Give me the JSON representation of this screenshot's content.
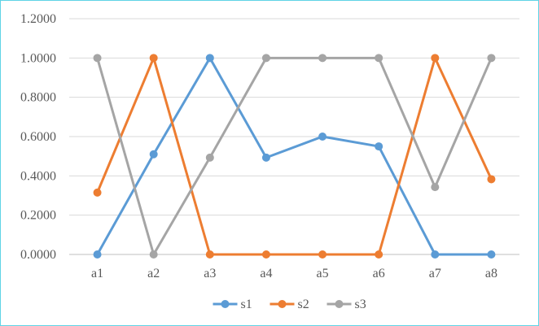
{
  "chart_data": {
    "type": "line",
    "categories": [
      "a1",
      "a2",
      "a3",
      "a4",
      "a5",
      "a6",
      "a7",
      "a8"
    ],
    "series": [
      {
        "name": "s1",
        "color": "#5b9bd5",
        "values": [
          0.0,
          0.51,
          1.0,
          0.493,
          0.6,
          0.55,
          0.0,
          0.0
        ]
      },
      {
        "name": "s2",
        "color": "#ed7d31",
        "values": [
          0.315,
          1.0,
          0.0,
          0.0,
          0.0,
          0.0,
          1.0,
          0.383
        ]
      },
      {
        "name": "s3",
        "color": "#a5a5a5",
        "values": [
          1.0,
          0.0,
          0.493,
          1.0,
          1.0,
          1.0,
          0.343,
          1.0
        ]
      }
    ],
    "ylim": [
      0,
      1.2
    ],
    "yticks": [
      "0.0000",
      "0.2000",
      "0.4000",
      "0.6000",
      "0.8000",
      "1.0000",
      "1.2000"
    ],
    "grid": true,
    "legend_position": "bottom",
    "title": "",
    "xlabel": "",
    "ylabel": ""
  }
}
